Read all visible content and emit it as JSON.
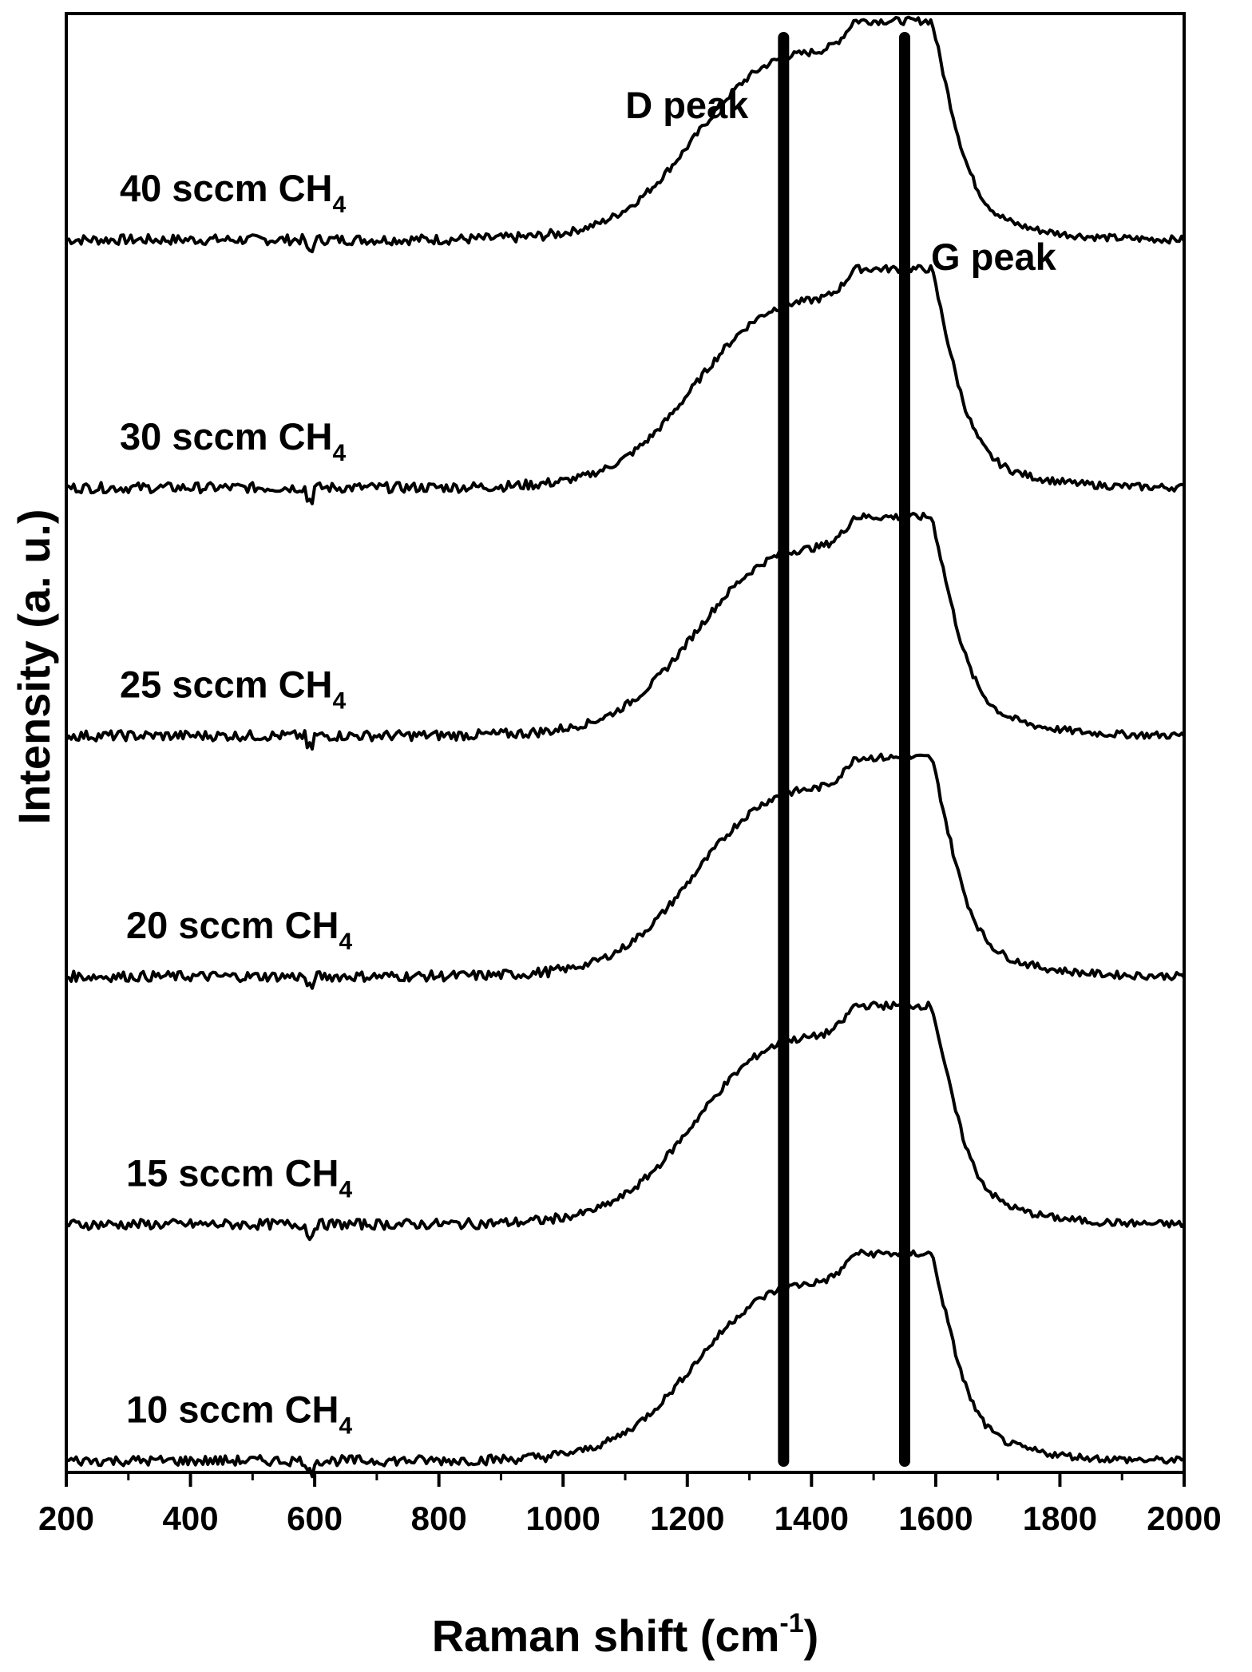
{
  "chart_data": {
    "type": "line",
    "xlabel": "Raman shift (cm",
    "xlabel_sup": "-1",
    "xlabel_close": ")",
    "ylabel": "Intensity (a. u.)",
    "xlim": [
      200,
      2000
    ],
    "x_ticks": [
      "200",
      "400",
      "600",
      "800",
      "1000",
      "1200",
      "1400",
      "1600",
      "1800",
      "2000"
    ],
    "y_ticks_shown": false,
    "reference_lines": [
      {
        "x": 1355,
        "label": "D peak"
      },
      {
        "x": 1550,
        "label": "G peak"
      }
    ],
    "series": [
      {
        "name": "40 sccm CH",
        "name_sub": "4",
        "baseline": 0.845,
        "peak": 0.995
      },
      {
        "name": "30 sccm CH",
        "name_sub": "4",
        "baseline": 0.675,
        "peak": 0.825
      },
      {
        "name": "25 sccm CH",
        "name_sub": "4",
        "baseline": 0.505,
        "peak": 0.655
      },
      {
        "name": "20 sccm CH",
        "name_sub": "4",
        "baseline": 0.34,
        "peak": 0.49
      },
      {
        "name": "15 sccm CH",
        "name_sub": "4",
        "baseline": 0.17,
        "peak": 0.32
      },
      {
        "name": "10 sccm CH",
        "name_sub": "4",
        "baseline": 0.008,
        "peak": 0.15
      }
    ],
    "grid": false,
    "legend": "none"
  }
}
